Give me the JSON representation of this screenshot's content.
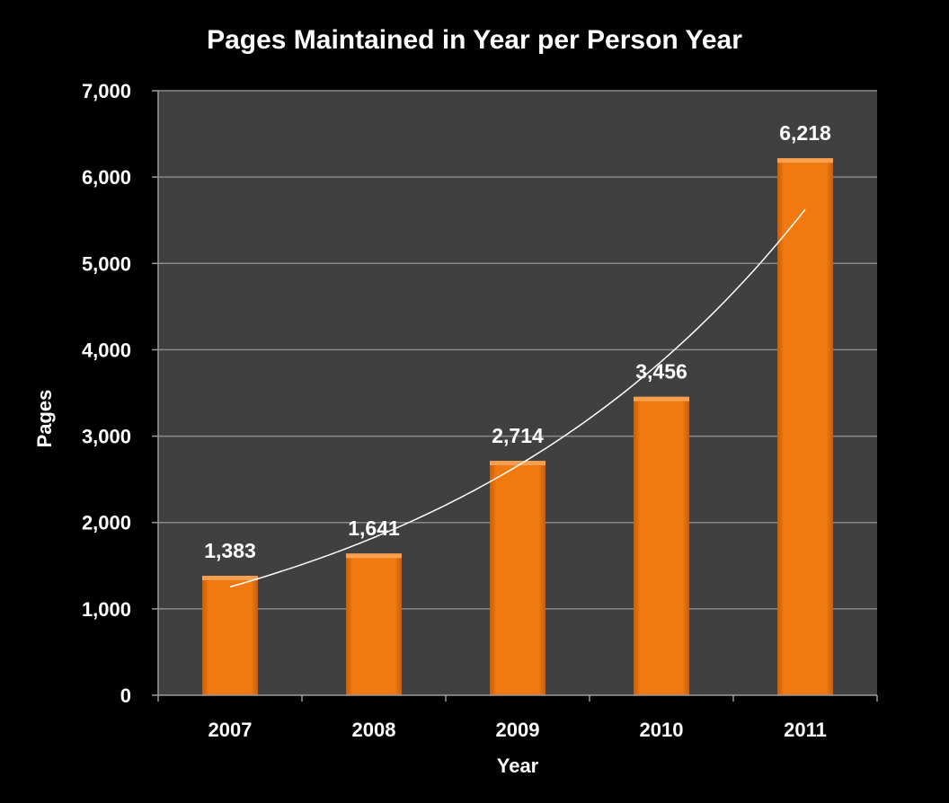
{
  "chart_data": {
    "type": "bar",
    "title": "Pages Maintained in Year per Person Year",
    "xlabel": "Year",
    "ylabel": "Pages",
    "categories": [
      "2007",
      "2008",
      "2009",
      "2010",
      "2011"
    ],
    "values": [
      1383,
      1641,
      2714,
      3456,
      6218
    ],
    "data_labels": [
      "1,383",
      "1,641",
      "2,714",
      "3,456",
      "6,218"
    ],
    "y_ticks": [
      "0",
      "1,000",
      "2,000",
      "3,000",
      "4,000",
      "5,000",
      "6,000",
      "7,000"
    ],
    "ylim": [
      0,
      7000
    ],
    "grid": true,
    "trendline": "exponential",
    "colors": {
      "bar": "#f07a10",
      "plot_bg": "#404040",
      "background": "#000000",
      "gridline": "#8a8a8a",
      "trendline": "#ffffff"
    }
  }
}
